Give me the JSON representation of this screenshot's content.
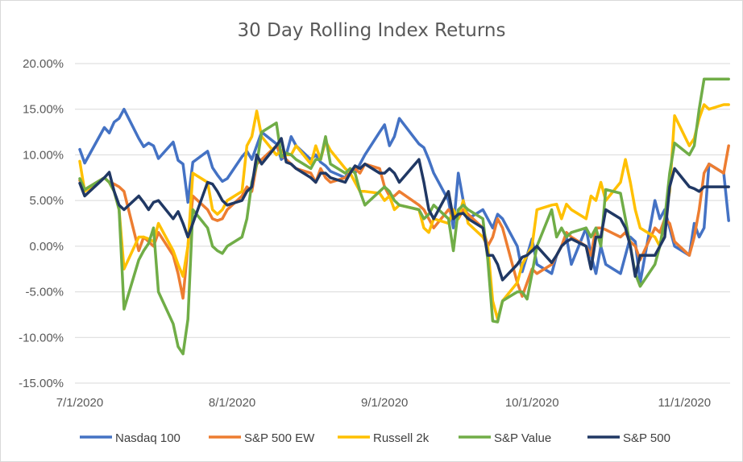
{
  "chart_data": {
    "type": "line",
    "title": "30 Day Rolling Index Returns",
    "xlabel": "",
    "ylabel": "",
    "ylim": [
      -0.15,
      0.2
    ],
    "y_ticks": [
      "20.00%",
      "15.00%",
      "10.00%",
      "5.00%",
      "0.00%",
      "-5.00%",
      "-10.00%",
      "-15.00%"
    ],
    "x_ticks": [
      "7/1/2020",
      "8/1/2020",
      "9/1/2020",
      "10/1/2020",
      "11/1/2020"
    ],
    "x": [
      "7/1",
      "7/2",
      "7/6",
      "7/7",
      "7/8",
      "7/9",
      "7/10",
      "7/13",
      "7/14",
      "7/15",
      "7/16",
      "7/17",
      "7/20",
      "7/21",
      "7/22",
      "7/23",
      "7/24",
      "7/27",
      "7/28",
      "7/29",
      "7/30",
      "7/31",
      "8/3",
      "8/4",
      "8/5",
      "8/6",
      "8/7",
      "8/10",
      "8/11",
      "8/12",
      "8/13",
      "8/14",
      "8/17",
      "8/18",
      "8/19",
      "8/20",
      "8/21",
      "8/24",
      "8/25",
      "8/26",
      "8/27",
      "8/28",
      "8/31",
      "9/1",
      "9/2",
      "9/3",
      "9/4",
      "9/8",
      "9/9",
      "9/10",
      "9/11",
      "9/14",
      "9/15",
      "9/16",
      "9/17",
      "9/18",
      "9/21",
      "9/22",
      "9/23",
      "9/24",
      "9/25",
      "9/28",
      "9/29",
      "9/30",
      "10/1",
      "10/2",
      "10/5",
      "10/6",
      "10/7",
      "10/8",
      "10/9",
      "10/12",
      "10/13",
      "10/14",
      "10/15",
      "10/16",
      "10/19",
      "10/20",
      "10/21",
      "10/22",
      "10/23",
      "10/26",
      "10/27",
      "10/28",
      "10/29",
      "10/30",
      "11/2",
      "11/3",
      "11/4",
      "11/5",
      "11/6",
      "11/9",
      "11/10"
    ],
    "x_dates": [
      "2020-07-01",
      "2020-07-02",
      "2020-07-06",
      "2020-07-07",
      "2020-07-08",
      "2020-07-09",
      "2020-07-10",
      "2020-07-13",
      "2020-07-14",
      "2020-07-15",
      "2020-07-16",
      "2020-07-17",
      "2020-07-20",
      "2020-07-21",
      "2020-07-22",
      "2020-07-23",
      "2020-07-24",
      "2020-07-27",
      "2020-07-28",
      "2020-07-29",
      "2020-07-30",
      "2020-07-31",
      "2020-08-03",
      "2020-08-04",
      "2020-08-05",
      "2020-08-06",
      "2020-08-07",
      "2020-08-10",
      "2020-08-11",
      "2020-08-12",
      "2020-08-13",
      "2020-08-14",
      "2020-08-17",
      "2020-08-18",
      "2020-08-19",
      "2020-08-20",
      "2020-08-21",
      "2020-08-24",
      "2020-08-25",
      "2020-08-26",
      "2020-08-27",
      "2020-08-28",
      "2020-08-31",
      "2020-09-01",
      "2020-09-02",
      "2020-09-03",
      "2020-09-04",
      "2020-09-08",
      "2020-09-09",
      "2020-09-10",
      "2020-09-11",
      "2020-09-14",
      "2020-09-15",
      "2020-09-16",
      "2020-09-17",
      "2020-09-18",
      "2020-09-21",
      "2020-09-22",
      "2020-09-23",
      "2020-09-24",
      "2020-09-25",
      "2020-09-28",
      "2020-09-29",
      "2020-09-30",
      "2020-10-01",
      "2020-10-02",
      "2020-10-05",
      "2020-10-06",
      "2020-10-07",
      "2020-10-08",
      "2020-10-09",
      "2020-10-12",
      "2020-10-13",
      "2020-10-14",
      "2020-10-15",
      "2020-10-16",
      "2020-10-19",
      "2020-10-20",
      "2020-10-21",
      "2020-10-22",
      "2020-10-23",
      "2020-10-26",
      "2020-10-27",
      "2020-10-28",
      "2020-10-29",
      "2020-10-30",
      "2020-11-02",
      "2020-11-03",
      "2020-11-04",
      "2020-11-05",
      "2020-11-06",
      "2020-11-09",
      "2020-11-10"
    ],
    "x_range": [
      "2020-07-01",
      "2020-11-10"
    ],
    "grid": "horizontal",
    "legend": "bottom",
    "series": [
      {
        "name": "Nasdaq 100",
        "color": "#4472C4",
        "values": [
          0.106,
          0.091,
          0.13,
          0.124,
          0.136,
          0.14,
          0.15,
          0.118,
          0.109,
          0.113,
          0.11,
          0.096,
          0.114,
          0.094,
          0.09,
          0.048,
          0.092,
          0.104,
          0.086,
          0.078,
          0.071,
          0.074,
          0.098,
          0.104,
          0.095,
          0.11,
          0.125,
          0.112,
          0.095,
          0.1,
          0.12,
          0.11,
          0.095,
          0.1,
          0.092,
          0.088,
          0.082,
          0.075,
          0.085,
          0.08,
          0.09,
          0.1,
          0.125,
          0.133,
          0.11,
          0.12,
          0.14,
          0.112,
          0.108,
          0.095,
          0.08,
          0.05,
          0.02,
          0.08,
          0.05,
          0.03,
          0.04,
          0.03,
          0.02,
          0.035,
          0.03,
          0.0,
          -0.028,
          -0.01,
          0.008,
          -0.02,
          -0.03,
          -0.01,
          0.0,
          0.01,
          -0.02,
          0.02,
          -0.01,
          -0.03,
          0.0,
          -0.02,
          -0.03,
          -0.01,
          0.01,
          0.005,
          -0.04,
          0.05,
          0.03,
          0.04,
          0.02,
          0.0,
          -0.01,
          0.025,
          0.01,
          0.02,
          0.09,
          0.08,
          0.028
        ]
      },
      {
        "name": "S&P 500 EW",
        "color": "#ED7D31",
        "values": [
          0.072,
          0.062,
          0.075,
          0.07,
          0.068,
          0.065,
          0.06,
          -0.005,
          0.01,
          0.005,
          0.0,
          0.015,
          -0.01,
          -0.03,
          -0.057,
          0.0,
          0.055,
          0.04,
          0.03,
          0.028,
          0.03,
          0.04,
          0.055,
          0.065,
          0.06,
          0.09,
          0.095,
          0.11,
          0.1,
          0.095,
          0.09,
          0.085,
          0.08,
          0.07,
          0.085,
          0.075,
          0.07,
          0.075,
          0.08,
          0.085,
          0.08,
          0.09,
          0.085,
          0.065,
          0.055,
          0.055,
          0.06,
          0.045,
          0.04,
          0.03,
          0.02,
          0.04,
          0.035,
          0.03,
          0.04,
          0.035,
          0.02,
          0.0,
          0.01,
          0.03,
          0.02,
          -0.04,
          -0.055,
          -0.04,
          -0.025,
          -0.03,
          -0.02,
          -0.01,
          0.0,
          0.015,
          0.01,
          0.0,
          -0.01,
          0.02,
          0.02,
          0.018,
          0.01,
          0.015,
          0.005,
          0.0,
          -0.015,
          0.02,
          0.015,
          0.03,
          0.025,
          0.005,
          -0.01,
          0.01,
          0.04,
          0.08,
          0.09,
          0.08,
          0.11
        ]
      },
      {
        "name": "Russell 2k",
        "color": "#FFC000",
        "values": [
          0.093,
          0.06,
          0.075,
          0.07,
          0.06,
          0.04,
          -0.025,
          0.01,
          0.01,
          0.008,
          0.005,
          0.025,
          -0.005,
          -0.02,
          -0.033,
          0.0,
          0.08,
          0.07,
          0.04,
          0.035,
          0.04,
          0.05,
          0.06,
          0.11,
          0.12,
          0.148,
          0.12,
          0.1,
          0.105,
          0.1,
          0.1,
          0.11,
          0.09,
          0.11,
          0.095,
          0.115,
          0.105,
          0.085,
          0.08,
          0.07,
          0.06,
          0.06,
          0.058,
          0.05,
          0.055,
          0.04,
          0.045,
          0.04,
          0.02,
          0.015,
          0.03,
          0.025,
          0.04,
          0.03,
          0.05,
          0.025,
          0.01,
          0.0,
          -0.06,
          -0.08,
          -0.06,
          -0.04,
          -0.02,
          -0.01,
          0.0,
          0.04,
          0.045,
          0.046,
          0.03,
          0.046,
          0.04,
          0.03,
          0.055,
          0.05,
          0.07,
          0.05,
          0.07,
          0.095,
          0.07,
          0.04,
          0.02,
          0.01,
          0.0,
          0.03,
          0.06,
          0.143,
          0.11,
          0.118,
          0.14,
          0.155,
          0.15,
          0.155,
          0.155
        ]
      },
      {
        "name": "S&P Value",
        "color": "#70AD47",
        "values": [
          0.074,
          0.062,
          0.075,
          0.07,
          0.06,
          0.04,
          -0.069,
          -0.015,
          -0.005,
          0.003,
          0.02,
          -0.05,
          -0.085,
          -0.11,
          -0.118,
          -0.08,
          0.04,
          0.02,
          0.0,
          -0.005,
          -0.008,
          0.0,
          0.01,
          0.03,
          0.07,
          0.09,
          0.125,
          0.135,
          0.098,
          0.102,
          0.1,
          0.095,
          0.085,
          0.095,
          0.095,
          0.12,
          0.09,
          0.08,
          0.085,
          0.08,
          0.06,
          0.045,
          0.06,
          0.065,
          0.06,
          0.05,
          0.045,
          0.04,
          0.03,
          0.035,
          0.045,
          0.03,
          -0.005,
          0.04,
          0.045,
          0.04,
          0.03,
          -0.015,
          -0.082,
          -0.083,
          -0.06,
          -0.05,
          -0.05,
          -0.058,
          -0.03,
          0.0,
          0.04,
          0.01,
          0.02,
          0.01,
          0.015,
          0.02,
          0.01,
          0.02,
          0.0,
          0.062,
          0.058,
          0.03,
          0.0,
          -0.03,
          -0.044,
          -0.02,
          0.0,
          0.03,
          0.08,
          0.113,
          0.1,
          0.11,
          0.15,
          0.183,
          0.183,
          0.183,
          0.183
        ]
      },
      {
        "name": "S&P 500",
        "color": "#203864",
        "values": [
          0.069,
          0.055,
          0.075,
          0.081,
          0.06,
          0.045,
          0.04,
          0.055,
          0.048,
          0.04,
          0.048,
          0.05,
          0.03,
          0.038,
          0.025,
          0.01,
          0.025,
          0.07,
          0.068,
          0.06,
          0.05,
          0.045,
          0.05,
          0.06,
          0.065,
          0.1,
          0.09,
          0.11,
          0.118,
          0.092,
          0.09,
          0.085,
          0.075,
          0.07,
          0.08,
          0.08,
          0.075,
          0.07,
          0.08,
          0.088,
          0.085,
          0.09,
          0.08,
          0.08,
          0.085,
          0.08,
          0.07,
          0.095,
          0.07,
          0.04,
          0.03,
          0.06,
          0.03,
          0.035,
          0.036,
          0.03,
          0.02,
          -0.01,
          -0.01,
          -0.02,
          -0.037,
          -0.02,
          -0.012,
          -0.01,
          -0.005,
          0.0,
          -0.018,
          -0.01,
          0.0,
          0.005,
          0.008,
          0.0,
          -0.025,
          0.01,
          0.01,
          0.04,
          0.03,
          0.02,
          0.0,
          -0.033,
          -0.01,
          -0.01,
          0.0,
          0.01,
          0.065,
          0.085,
          0.065,
          0.063,
          0.06,
          0.065,
          0.065,
          0.065,
          0.065
        ]
      }
    ]
  }
}
